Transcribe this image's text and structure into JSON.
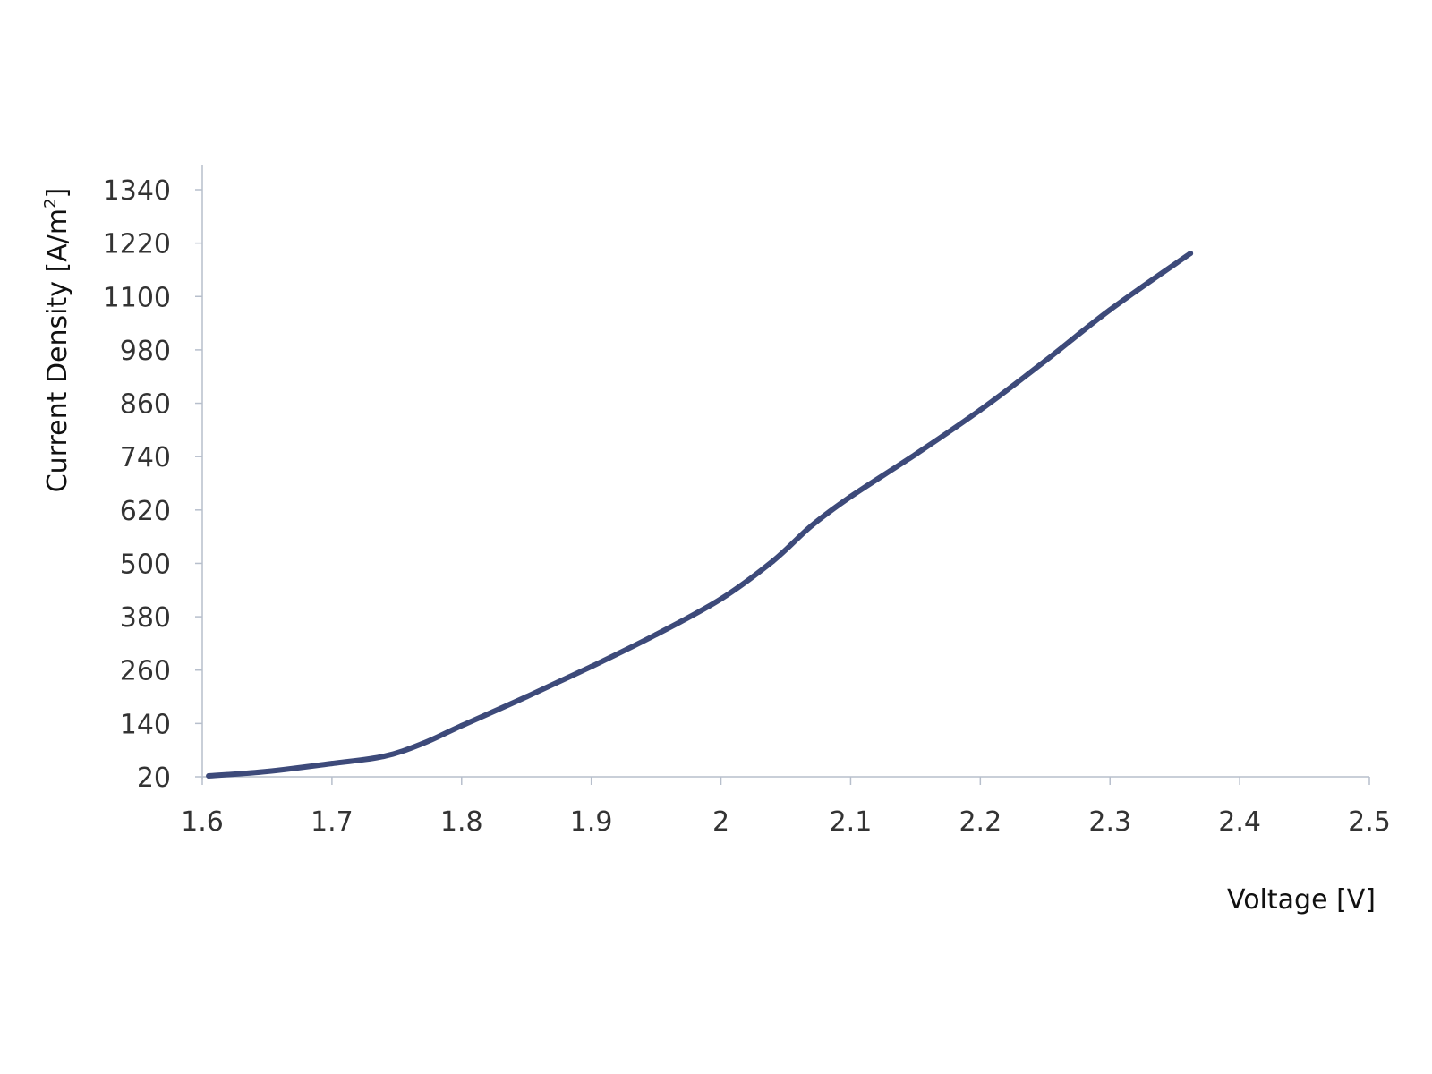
{
  "chart_data": {
    "type": "line",
    "title": "",
    "xlabel": "Voltage [V]",
    "ylabel": {
      "text": "Current Density [A/m",
      "superscript": "2",
      "suffix": "]"
    },
    "xlim": [
      1.6,
      2.5
    ],
    "ylim": [
      20,
      1340
    ],
    "x_ticks": [
      "1.6",
      "1.7",
      "1.8",
      "1.9",
      "2",
      "2.1",
      "2.2",
      "2.3",
      "2.4",
      "2.5"
    ],
    "y_ticks": [
      "20",
      "140",
      "260",
      "380",
      "500",
      "620",
      "740",
      "860",
      "980",
      "1100",
      "1220",
      "1340"
    ],
    "grid": false,
    "legend": "none",
    "series": [
      {
        "color": "#3d4a7a",
        "x": [
          1.605,
          1.65,
          1.7,
          1.74,
          1.77,
          1.8,
          1.85,
          1.9,
          1.95,
          2.0,
          2.04,
          2.07,
          2.1,
          2.15,
          2.2,
          2.25,
          2.3,
          2.362
        ],
        "y": [
          22,
          32,
          50,
          66,
          95,
          135,
          200,
          268,
          340,
          420,
          505,
          585,
          650,
          745,
          845,
          955,
          1070,
          1197
        ]
      }
    ]
  }
}
